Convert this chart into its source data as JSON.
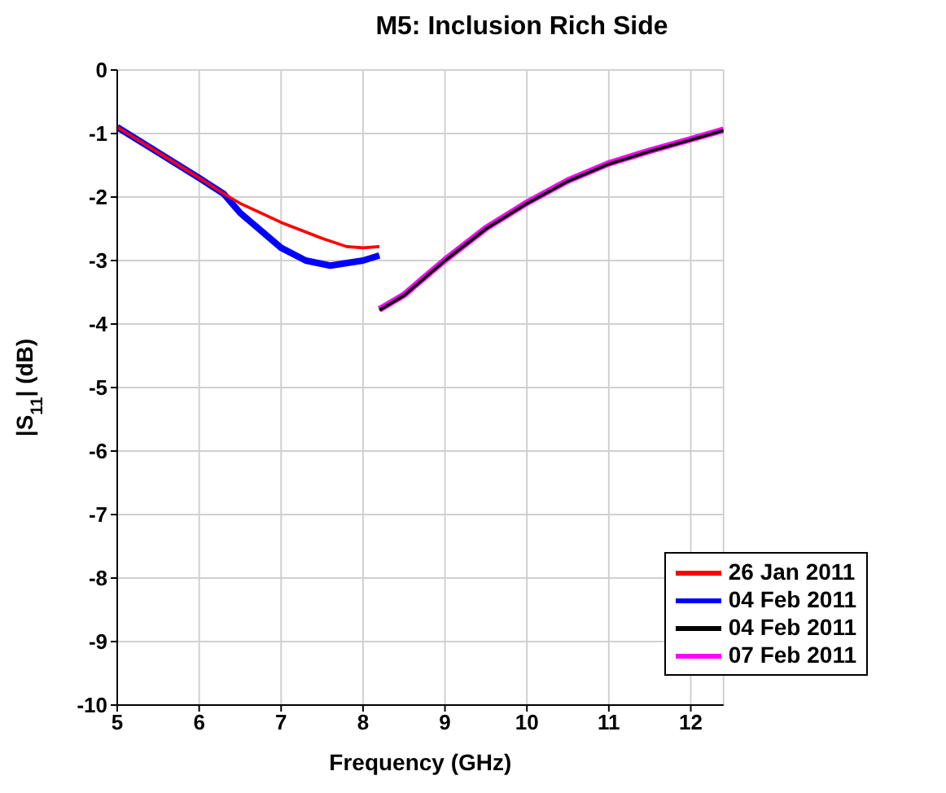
{
  "chart_data": {
    "type": "line",
    "title": "M5: Inclusion Rich Side",
    "xlabel": "Frequency (GHz)",
    "ylabel": "|S$_{11}$| (dB)",
    "xlim": [
      5,
      12.4
    ],
    "xticks": [
      5,
      6,
      7,
      8,
      9,
      10,
      11,
      12
    ],
    "ylim": [
      -10,
      0
    ],
    "yticks": [
      -10,
      -9,
      -8,
      -7,
      -6,
      -5,
      -4,
      -3,
      -2,
      -1,
      0
    ],
    "grid": true,
    "legend": "bottom right",
    "marker": "none",
    "line_style": "solid",
    "series": [
      {
        "name": "26 Jan 2011",
        "color": "#ff0000",
        "x": [
          5,
          5.5,
          6,
          6.3,
          6.5,
          7,
          7.5,
          7.8,
          8,
          8.2
        ],
        "values": [
          -0.9,
          -1.3,
          -1.7,
          -1.95,
          -2.1,
          -2.4,
          -2.65,
          -2.78,
          -2.8,
          -2.78
        ]
      },
      {
        "name": "04 Feb 2011",
        "color": "#0000ff",
        "x": [
          5,
          5.5,
          6,
          6.3,
          6.5,
          7,
          7.3,
          7.6,
          8,
          8.2
        ],
        "values": [
          -0.9,
          -1.3,
          -1.7,
          -1.95,
          -2.25,
          -2.8,
          -3.0,
          -3.08,
          -3.0,
          -2.92
        ]
      },
      {
        "name": "04 Feb 2011",
        "color": "#000000",
        "x": [
          8.2,
          8.5,
          9,
          9.5,
          10,
          10.5,
          11,
          11.5,
          12,
          12.4
        ],
        "values": [
          -3.78,
          -3.55,
          -3.0,
          -2.5,
          -2.1,
          -1.75,
          -1.48,
          -1.28,
          -1.1,
          -0.95
        ]
      },
      {
        "name": "07 Feb 2011",
        "color": "#ff00ff",
        "x": [
          8.2,
          8.5,
          9,
          9.5,
          10,
          10.5,
          11,
          11.5,
          12,
          12.4
        ],
        "values": [
          -3.77,
          -3.54,
          -2.99,
          -2.49,
          -2.09,
          -1.74,
          -1.47,
          -1.27,
          -1.09,
          -0.94
        ]
      }
    ]
  }
}
